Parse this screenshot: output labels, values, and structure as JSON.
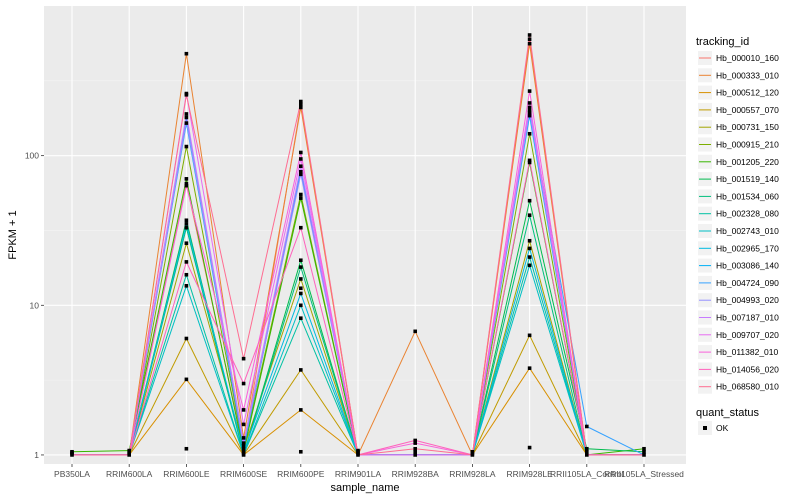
{
  "chart_data": {
    "type": "line",
    "xlabel": "sample_name",
    "ylabel": "FPKM + 1",
    "y_scale": "log10",
    "ylim": [
      0.87,
      1000
    ],
    "y_ticks": [
      1,
      10,
      100
    ],
    "y_tick_labels": [
      "1",
      "10",
      "100"
    ],
    "grid": true,
    "background": "#ebebeb",
    "categories": [
      "PB350LA",
      "RRIM600LA",
      "RRIM600LE",
      "RRIM600SE",
      "RRIM600PE",
      "RRIM901LA",
      "RRIM928BA",
      "RRIM928LA",
      "RRIM928LE",
      "RRII105LA_Control",
      "RRII105LA_Stressed"
    ],
    "legend": {
      "title": "tracking_id",
      "placement": "right",
      "shape_title": "quant_status",
      "shape_label": "OK"
    },
    "series": [
      {
        "name": "Hb_000010_160",
        "color": "#F8766D",
        "values": [
          1.0,
          1.0,
          65,
          1.1,
          220,
          1.0,
          1.0,
          1.0,
          600,
          1.0,
          1.0
        ]
      },
      {
        "name": "Hb_000333_010",
        "color": "#EA8331",
        "values": [
          1.0,
          1.0,
          480,
          1.3,
          210,
          1.0,
          6.7,
          1.0,
          560,
          1.0,
          1.0
        ]
      },
      {
        "name": "Hb_000512_120",
        "color": "#D89000",
        "values": [
          1.0,
          1.0,
          3.2,
          1.0,
          2.0,
          1.0,
          1.0,
          1.0,
          3.8,
          1.0,
          1.0
        ]
      },
      {
        "name": "Hb_000557_070",
        "color": "#C09B00",
        "values": [
          1.0,
          1.0,
          6.0,
          1.0,
          3.7,
          1.0,
          1.0,
          1.0,
          6.3,
          1.0,
          1.0
        ]
      },
      {
        "name": "Hb_000731_150",
        "color": "#A3A500",
        "values": [
          1.0,
          1.0,
          26,
          1.1,
          15,
          1.0,
          1.0,
          1.0,
          27,
          1.0,
          1.0
        ]
      },
      {
        "name": "Hb_000915_210",
        "color": "#7CAE00",
        "values": [
          1.0,
          1.0,
          115,
          1.1,
          55,
          1.0,
          1.0,
          1.0,
          140,
          1.0,
          1.0
        ]
      },
      {
        "name": "Hb_001205_220",
        "color": "#39B600",
        "values": [
          1.05,
          1.07,
          70,
          1.05,
          52,
          1.0,
          1.0,
          1.0,
          90,
          1.0,
          1.1
        ]
      },
      {
        "name": "Hb_001519_140",
        "color": "#00BB4E",
        "values": [
          1.0,
          1.0,
          37,
          1.0,
          20,
          1.0,
          1.0,
          1.0,
          50,
          1.1,
          1.05
        ]
      },
      {
        "name": "Hb_001534_060",
        "color": "#00BF7D",
        "values": [
          1.0,
          1.0,
          33,
          1.0,
          18,
          1.0,
          1.0,
          1.0,
          40,
          1.0,
          1.0
        ]
      },
      {
        "name": "Hb_002328_080",
        "color": "#00C1A3",
        "values": [
          1.0,
          1.0,
          16,
          1.0,
          8.2,
          1.0,
          1.0,
          1.0,
          21,
          1.0,
          1.0
        ]
      },
      {
        "name": "Hb_002743_010",
        "color": "#00BFC4",
        "values": [
          1.0,
          1.0,
          13.5,
          1.0,
          10,
          1.0,
          1.0,
          1.0,
          18.5,
          1.0,
          1.0
        ]
      },
      {
        "name": "Hb_002965_170",
        "color": "#00BAE0",
        "values": [
          1.0,
          1.0,
          35,
          1.05,
          12,
          1.0,
          1.0,
          1.0,
          24,
          1.0,
          1.0
        ]
      },
      {
        "name": "Hb_003086_140",
        "color": "#00B0F6",
        "values": [
          1.0,
          1.0,
          165,
          1.1,
          80,
          1.0,
          1.0,
          1.0,
          185,
          1.0,
          1.0
        ]
      },
      {
        "name": "Hb_004724_090",
        "color": "#35A2FF",
        "values": [
          1.0,
          1.0,
          180,
          1.2,
          78,
          1.0,
          1.0,
          1.0,
          200,
          1.55,
          1.0
        ]
      },
      {
        "name": "Hb_004993_020",
        "color": "#9590FF",
        "values": [
          1.0,
          1.0,
          170,
          1.15,
          75,
          1.0,
          1.0,
          1.0,
          195,
          1.0,
          1.0
        ]
      },
      {
        "name": "Hb_007187_010",
        "color": "#C77CFF",
        "values": [
          1.0,
          1.0,
          190,
          1.2,
          85,
          1.0,
          1.0,
          1.0,
          210,
          1.0,
          1.0
        ]
      },
      {
        "name": "Hb_009707_020",
        "color": "#E76BF3",
        "values": [
          1.0,
          1.0,
          260,
          1.6,
          95,
          1.0,
          1.0,
          1.0,
          225,
          1.0,
          1.0
        ]
      },
      {
        "name": "Hb_011382_010",
        "color": "#FA62DB",
        "values": [
          1.0,
          1.0,
          63,
          2.0,
          105,
          1.0,
          1.2,
          1.0,
          270,
          1.0,
          1.0
        ]
      },
      {
        "name": "Hb_014056_020",
        "color": "#FF62BC",
        "values": [
          1.0,
          1.0,
          19.5,
          3.0,
          33,
          1.0,
          1.25,
          1.0,
          93,
          1.0,
          1.0
        ]
      },
      {
        "name": "Hb_068580_010",
        "color": "#FF6C91",
        "values": [
          1.0,
          1.0,
          255,
          4.4,
          230,
          1.0,
          1.1,
          1.0,
          640,
          1.0,
          1.0
        ]
      }
    ],
    "points": {
      "marker_color": "#000000",
      "groups": [
        [
          1.0,
          1.02,
          1.04,
          1.05
        ],
        [
          1.0,
          1.02,
          1.05,
          1.07
        ],
        [
          1.1,
          3.2,
          6.0,
          13.5,
          16,
          19.5,
          26,
          33,
          35,
          37,
          63,
          65,
          70,
          115,
          165,
          180,
          190,
          255,
          260,
          480
        ],
        [
          1.0,
          1.02,
          1.05,
          1.1,
          1.15,
          1.2,
          1.3,
          1.6,
          2.0,
          3.0,
          4.4
        ],
        [
          1.05,
          2.0,
          3.7,
          8.2,
          10,
          12,
          13,
          15,
          18,
          20,
          33,
          52,
          55,
          75,
          78,
          85,
          95,
          105,
          210,
          220,
          230
        ],
        [
          1.0,
          1.02,
          1.05,
          1.07
        ],
        [
          1.0,
          1.05,
          1.1,
          1.2,
          1.25,
          6.7
        ],
        [
          1.0,
          1.02,
          1.05
        ],
        [
          1.12,
          3.8,
          6.3,
          18.5,
          21,
          24,
          27,
          40,
          50,
          90,
          93,
          140,
          185,
          195,
          200,
          210,
          225,
          270,
          560,
          600,
          640
        ],
        [
          1.0,
          1.05,
          1.1,
          1.55
        ],
        [
          1.0,
          1.05,
          1.1
        ]
      ]
    }
  }
}
